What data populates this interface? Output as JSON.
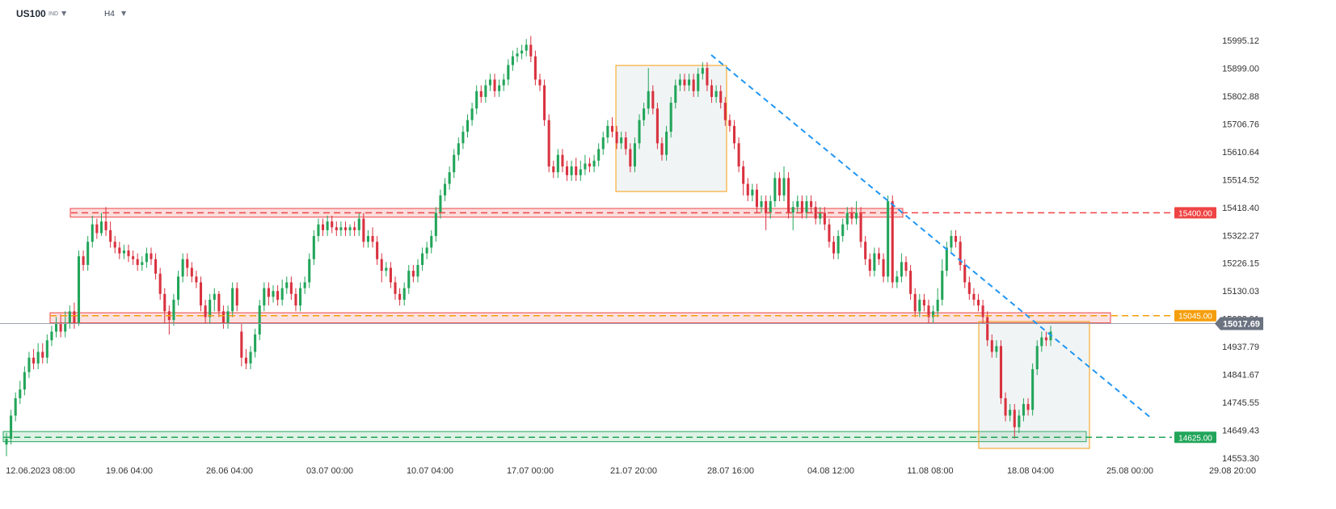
{
  "header": {
    "symbol": "US100",
    "symbol_sub": "IND",
    "timeframe": "H4"
  },
  "chart_data": {
    "type": "candlestick",
    "y_ticks": [
      "15995.12",
      "15899.00",
      "15802.88",
      "15706.76",
      "15610.64",
      "15514.52",
      "15418.40",
      "15322.27",
      "15226.15",
      "15130.03",
      "15033.91",
      "14937.79",
      "14841.67",
      "14745.55",
      "14649.43",
      "14553.30"
    ],
    "x_ticks": [
      "12.06.2023  08:00",
      "19.06  04:00",
      "26.06  04:00",
      "03.07  00:00",
      "10.07  04:00",
      "17.07  00:00",
      "21.07  20:00",
      "28.07  16:00",
      "04.08  12:00",
      "11.08  08:00",
      "18.08  04:00",
      "25.08  00:00",
      "29.08  20:00"
    ],
    "ylim": [
      14553.3,
      15995.12
    ],
    "current_price": "15017.69",
    "levels": [
      {
        "label": "15400.00",
        "value": 15400,
        "color": "#ef4444"
      },
      {
        "label": "15045.00",
        "value": 15045,
        "color": "#f59e0b"
      },
      {
        "label": "14625.00",
        "value": 14625,
        "color": "#22a55a"
      }
    ],
    "colors": {
      "up": "#22a55a",
      "down": "#d9323f",
      "trendline": "#2196f3"
    },
    "series": [
      [
        14600,
        14620,
        14560,
        14640
      ],
      [
        14620,
        14700,
        14600,
        14720
      ],
      [
        14700,
        14760,
        14680,
        14780
      ],
      [
        14760,
        14790,
        14740,
        14820
      ],
      [
        14790,
        14850,
        14770,
        14870
      ],
      [
        14850,
        14900,
        14830,
        14920
      ],
      [
        14900,
        14880,
        14860,
        14930
      ],
      [
        14880,
        14920,
        14860,
        14950
      ],
      [
        14920,
        14900,
        14880,
        14950
      ],
      [
        14900,
        14960,
        14880,
        14980
      ],
      [
        14960,
        14990,
        14940,
        15010
      ],
      [
        14990,
        15020,
        14970,
        15040
      ],
      [
        15020,
        14990,
        14970,
        15050
      ],
      [
        14990,
        15020,
        14970,
        15060
      ],
      [
        15020,
        15060,
        15000,
        15080
      ],
      [
        15060,
        15020,
        15000,
        15090
      ],
      [
        15020,
        15250,
        15010,
        15270
      ],
      [
        15250,
        15220,
        15200,
        15270
      ],
      [
        15220,
        15300,
        15200,
        15320
      ],
      [
        15300,
        15360,
        15280,
        15390
      ],
      [
        15360,
        15330,
        15310,
        15380
      ],
      [
        15330,
        15370,
        15320,
        15400
      ],
      [
        15370,
        15340,
        15320,
        15420
      ],
      [
        15340,
        15300,
        15280,
        15370
      ],
      [
        15300,
        15280,
        15260,
        15320
      ],
      [
        15280,
        15260,
        15240,
        15300
      ],
      [
        15260,
        15270,
        15240,
        15290
      ],
      [
        15270,
        15250,
        15230,
        15290
      ],
      [
        15250,
        15240,
        15220,
        15270
      ],
      [
        15240,
        15220,
        15200,
        15260
      ],
      [
        15220,
        15230,
        15200,
        15250
      ],
      [
        15230,
        15260,
        15210,
        15280
      ],
      [
        15260,
        15240,
        15220,
        15280
      ],
      [
        15240,
        15190,
        15170,
        15260
      ],
      [
        15190,
        15120,
        15100,
        15210
      ],
      [
        15120,
        15060,
        15020,
        15140
      ],
      [
        15060,
        15030,
        14980,
        15080
      ],
      [
        15030,
        15100,
        15010,
        15120
      ],
      [
        15100,
        15180,
        15080,
        15200
      ],
      [
        15180,
        15240,
        15160,
        15260
      ],
      [
        15240,
        15210,
        15180,
        15260
      ],
      [
        15210,
        15180,
        15160,
        15230
      ],
      [
        15180,
        15160,
        15140,
        15200
      ],
      [
        15160,
        15080,
        15060,
        15180
      ],
      [
        15080,
        15040,
        15020,
        15100
      ],
      [
        15040,
        15100,
        15020,
        15120
      ],
      [
        15100,
        15120,
        15060,
        15140
      ],
      [
        15120,
        15060,
        15040,
        15130
      ],
      [
        15060,
        15020,
        15000,
        15080
      ],
      [
        15020,
        15060,
        15000,
        15080
      ],
      [
        15060,
        15140,
        15040,
        15160
      ],
      [
        15140,
        15080,
        15060,
        15160
      ],
      [
        14990,
        14900,
        14870,
        15020
      ],
      [
        14900,
        14880,
        14860,
        14930
      ],
      [
        14880,
        14920,
        14860,
        14940
      ],
      [
        14920,
        14980,
        14900,
        15000
      ],
      [
        14980,
        15080,
        14960,
        15100
      ],
      [
        15080,
        15140,
        15060,
        15160
      ],
      [
        15140,
        15110,
        15080,
        15160
      ],
      [
        15110,
        15130,
        15090,
        15150
      ],
      [
        15130,
        15100,
        15080,
        15150
      ],
      [
        15100,
        15140,
        15080,
        15170
      ],
      [
        15140,
        15160,
        15120,
        15180
      ],
      [
        15160,
        15120,
        15100,
        15180
      ],
      [
        15120,
        15080,
        15060,
        15140
      ],
      [
        15080,
        15140,
        15060,
        15160
      ],
      [
        15140,
        15160,
        15120,
        15180
      ],
      [
        15160,
        15240,
        15140,
        15260
      ],
      [
        15240,
        15320,
        15220,
        15340
      ],
      [
        15320,
        15360,
        15300,
        15380
      ],
      [
        15360,
        15340,
        15320,
        15380
      ],
      [
        15340,
        15370,
        15320,
        15390
      ],
      [
        15370,
        15350,
        15330,
        15390
      ],
      [
        15350,
        15340,
        15320,
        15370
      ],
      [
        15340,
        15350,
        15320,
        15370
      ],
      [
        15350,
        15340,
        15320,
        15370
      ],
      [
        15340,
        15350,
        15320,
        15360
      ],
      [
        15350,
        15340,
        15320,
        15370
      ],
      [
        15340,
        15380,
        15320,
        15400
      ],
      [
        15380,
        15300,
        15280,
        15400
      ],
      [
        15300,
        15320,
        15280,
        15340
      ],
      [
        15320,
        15300,
        15280,
        15350
      ],
      [
        15300,
        15240,
        15220,
        15320
      ],
      [
        15240,
        15200,
        15160,
        15260
      ],
      [
        15200,
        15210,
        15180,
        15230
      ],
      [
        15210,
        15160,
        15140,
        15230
      ],
      [
        15160,
        15120,
        15100,
        15180
      ],
      [
        15120,
        15100,
        15080,
        15140
      ],
      [
        15100,
        15140,
        15080,
        15160
      ],
      [
        15140,
        15200,
        15120,
        15220
      ],
      [
        15200,
        15180,
        15160,
        15220
      ],
      [
        15180,
        15220,
        15160,
        15240
      ],
      [
        15220,
        15260,
        15200,
        15280
      ],
      [
        15260,
        15280,
        15240,
        15300
      ],
      [
        15280,
        15320,
        15260,
        15340
      ],
      [
        15320,
        15400,
        15300,
        15420
      ],
      [
        15400,
        15460,
        15380,
        15480
      ],
      [
        15460,
        15500,
        15440,
        15520
      ],
      [
        15500,
        15540,
        15480,
        15560
      ],
      [
        15540,
        15600,
        15520,
        15620
      ],
      [
        15600,
        15640,
        15580,
        15660
      ],
      [
        15640,
        15680,
        15620,
        15700
      ],
      [
        15680,
        15720,
        15660,
        15740
      ],
      [
        15720,
        15760,
        15700,
        15780
      ],
      [
        15760,
        15820,
        15740,
        15840
      ],
      [
        15820,
        15800,
        15780,
        15840
      ],
      [
        15800,
        15840,
        15780,
        15860
      ],
      [
        15840,
        15860,
        15820,
        15880
      ],
      [
        15860,
        15820,
        15800,
        15880
      ],
      [
        15820,
        15840,
        15800,
        15860
      ],
      [
        15840,
        15860,
        15820,
        15880
      ],
      [
        15860,
        15910,
        15840,
        15930
      ],
      [
        15910,
        15940,
        15890,
        15960
      ],
      [
        15940,
        15950,
        15920,
        15970
      ],
      [
        15950,
        15960,
        15930,
        15980
      ],
      [
        15960,
        15980,
        15940,
        16000
      ],
      [
        15980,
        15940,
        15920,
        16010
      ],
      [
        15940,
        15860,
        15840,
        15960
      ],
      [
        15860,
        15840,
        15820,
        15880
      ],
      [
        15840,
        15720,
        15700,
        15860
      ],
      [
        15720,
        15560,
        15540,
        15740
      ],
      [
        15560,
        15540,
        15520,
        15580
      ],
      [
        15540,
        15600,
        15520,
        15620
      ],
      [
        15600,
        15560,
        15540,
        15620
      ],
      [
        15560,
        15530,
        15510,
        15580
      ],
      [
        15530,
        15560,
        15510,
        15580
      ],
      [
        15560,
        15530,
        15510,
        15590
      ],
      [
        15530,
        15550,
        15510,
        15580
      ],
      [
        15550,
        15570,
        15530,
        15600
      ],
      [
        15570,
        15560,
        15540,
        15590
      ],
      [
        15560,
        15580,
        15540,
        15600
      ],
      [
        15580,
        15620,
        15560,
        15640
      ],
      [
        15620,
        15660,
        15600,
        15680
      ],
      [
        15660,
        15700,
        15640,
        15720
      ],
      [
        15700,
        15680,
        15660,
        15730
      ],
      [
        15680,
        15640,
        15620,
        15700
      ],
      [
        15640,
        15660,
        15620,
        15680
      ],
      [
        15660,
        15620,
        15600,
        15680
      ],
      [
        15620,
        15560,
        15540,
        15640
      ],
      [
        15560,
        15640,
        15540,
        15660
      ],
      [
        15640,
        15720,
        15620,
        15740
      ],
      [
        15720,
        15760,
        15700,
        15780
      ],
      [
        15760,
        15820,
        15740,
        15900
      ],
      [
        15820,
        15760,
        15740,
        15840
      ],
      [
        15760,
        15640,
        15620,
        15780
      ],
      [
        15640,
        15600,
        15580,
        15660
      ],
      [
        15600,
        15680,
        15580,
        15700
      ],
      [
        15680,
        15780,
        15660,
        15800
      ],
      [
        15780,
        15840,
        15760,
        15860
      ],
      [
        15840,
        15860,
        15820,
        15880
      ],
      [
        15860,
        15840,
        15820,
        15880
      ],
      [
        15840,
        15860,
        15820,
        15880
      ],
      [
        15860,
        15820,
        15800,
        15880
      ],
      [
        15820,
        15880,
        15800,
        15900
      ],
      [
        15880,
        15900,
        15860,
        15920
      ],
      [
        15900,
        15840,
        15820,
        15920
      ],
      [
        15840,
        15800,
        15780,
        15860
      ],
      [
        15800,
        15820,
        15780,
        15840
      ],
      [
        15820,
        15780,
        15760,
        15840
      ],
      [
        15780,
        15720,
        15700,
        15800
      ],
      [
        15720,
        15700,
        15680,
        15740
      ],
      [
        15700,
        15640,
        15620,
        15720
      ],
      [
        15640,
        15560,
        15540,
        15660
      ],
      [
        15560,
        15500,
        15460,
        15580
      ],
      [
        15500,
        15460,
        15440,
        15520
      ],
      [
        15460,
        15480,
        15440,
        15500
      ],
      [
        15480,
        15420,
        15400,
        15500
      ],
      [
        15420,
        15440,
        15400,
        15460
      ],
      [
        15440,
        15400,
        15340,
        15460
      ],
      [
        15400,
        15440,
        15380,
        15460
      ],
      [
        15440,
        15520,
        15420,
        15540
      ],
      [
        15520,
        15460,
        15440,
        15540
      ],
      [
        15460,
        15520,
        15440,
        15560
      ],
      [
        15520,
        15400,
        15380,
        15540
      ],
      [
        15400,
        15420,
        15340,
        15440
      ],
      [
        15420,
        15440,
        15400,
        15460
      ],
      [
        15440,
        15400,
        15380,
        15460
      ],
      [
        15400,
        15440,
        15380,
        15460
      ],
      [
        15440,
        15420,
        15400,
        15460
      ],
      [
        15420,
        15380,
        15360,
        15440
      ],
      [
        15380,
        15400,
        15360,
        15420
      ],
      [
        15400,
        15360,
        15340,
        15420
      ],
      [
        15360,
        15300,
        15280,
        15380
      ],
      [
        15300,
        15260,
        15240,
        15320
      ],
      [
        15260,
        15320,
        15240,
        15340
      ],
      [
        15320,
        15360,
        15300,
        15380
      ],
      [
        15360,
        15400,
        15340,
        15420
      ],
      [
        15400,
        15380,
        15360,
        15420
      ],
      [
        15380,
        15400,
        15360,
        15440
      ],
      [
        15400,
        15300,
        15280,
        15420
      ],
      [
        15300,
        15240,
        15220,
        15320
      ],
      [
        15240,
        15200,
        15180,
        15260
      ],
      [
        15200,
        15260,
        15180,
        15280
      ],
      [
        15260,
        15240,
        15220,
        15280
      ],
      [
        15240,
        15180,
        15160,
        15260
      ],
      [
        15180,
        15440,
        15160,
        15460
      ],
      [
        15440,
        15160,
        15140,
        15460
      ],
      [
        15160,
        15180,
        15140,
        15200
      ],
      [
        15180,
        15230,
        15160,
        15260
      ],
      [
        15230,
        15200,
        15180,
        15250
      ],
      [
        15200,
        15120,
        15100,
        15220
      ],
      [
        15120,
        15060,
        15040,
        15140
      ],
      [
        15060,
        15100,
        15040,
        15120
      ],
      [
        15100,
        15080,
        15060,
        15120
      ],
      [
        15080,
        15040,
        15020,
        15100
      ],
      [
        15040,
        15060,
        15020,
        15080
      ],
      [
        15060,
        15100,
        15040,
        15140
      ],
      [
        15100,
        15200,
        15080,
        15240
      ],
      [
        15200,
        15280,
        15180,
        15300
      ],
      [
        15280,
        15320,
        15260,
        15340
      ],
      [
        15320,
        15300,
        15280,
        15340
      ],
      [
        15300,
        15220,
        15200,
        15320
      ],
      [
        15220,
        15160,
        15140,
        15240
      ],
      [
        15160,
        15120,
        15100,
        15180
      ],
      [
        15120,
        15100,
        15080,
        15140
      ],
      [
        15100,
        15080,
        15060,
        15120
      ],
      [
        15080,
        15040,
        15020,
        15100
      ],
      [
        15040,
        14960,
        14940,
        15060
      ],
      [
        14960,
        14920,
        14900,
        14980
      ],
      [
        14920,
        14940,
        14900,
        14960
      ],
      [
        14940,
        14760,
        14740,
        14960
      ],
      [
        14760,
        14700,
        14680,
        14780
      ],
      [
        14700,
        14720,
        14680,
        14740
      ],
      [
        14720,
        14660,
        14620,
        14740
      ],
      [
        14660,
        14700,
        14640,
        14720
      ],
      [
        14700,
        14740,
        14680,
        14760
      ],
      [
        14740,
        14720,
        14700,
        14760
      ],
      [
        14720,
        14860,
        14700,
        14880
      ],
      [
        14860,
        14940,
        14840,
        14960
      ],
      [
        14940,
        14970,
        14920,
        14990
      ],
      [
        14970,
        14960,
        14940,
        14990
      ],
      [
        14960,
        14990,
        14940,
        15010
      ]
    ]
  },
  "annotations": {
    "current_tag": "15017.69",
    "rect_labels": [
      "15400.00",
      "15045.00",
      "14625.00"
    ]
  }
}
